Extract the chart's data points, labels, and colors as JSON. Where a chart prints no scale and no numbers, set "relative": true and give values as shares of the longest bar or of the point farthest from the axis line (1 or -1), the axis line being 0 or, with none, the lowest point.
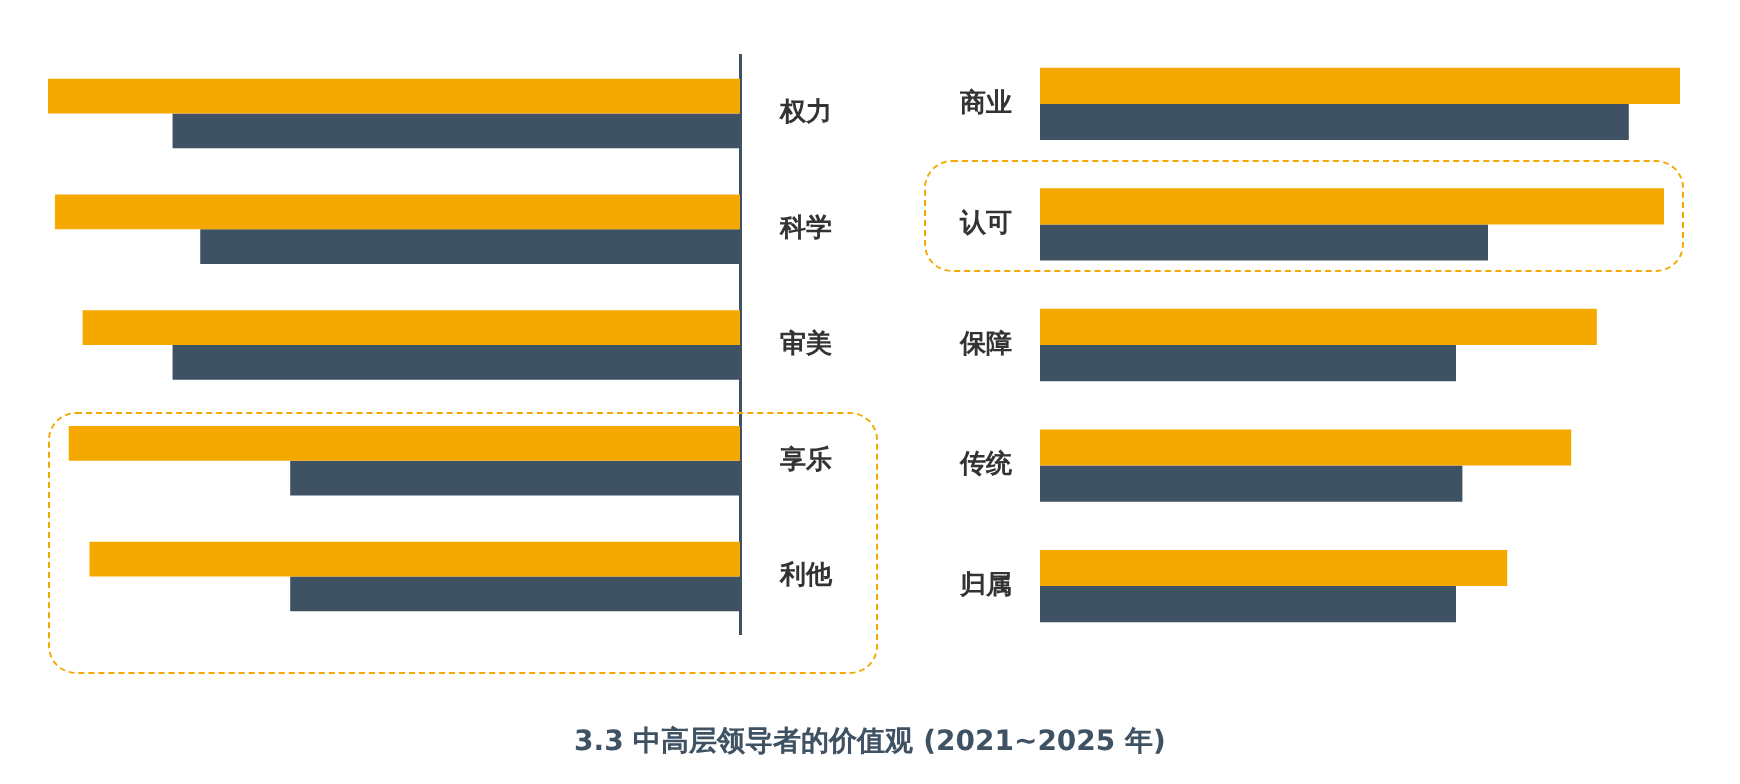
{
  "chart_data": [
    {
      "type": "bar",
      "orientation": "horizontal",
      "relative": true,
      "title": "3.3 中高层领导者的价值观 (2021~2025 年)",
      "categories": [
        "权力",
        "科学",
        "审美",
        "享乐",
        "利他"
      ],
      "legend": false,
      "grid": false,
      "series": [
        {
          "color": "#f5a800",
          "values": [
            1,
            0.99,
            0.95,
            0.97,
            0.94
          ]
        },
        {
          "color": "#3f5263",
          "values": [
            0.82,
            0.78,
            0.82,
            0.65,
            0.65
          ]
        }
      ]
    },
    {
      "type": "bar",
      "orientation": "horizontal",
      "relative": true,
      "categories": [
        "商业",
        "认可",
        "保障",
        "传统",
        "归属"
      ],
      "legend": false,
      "grid": false,
      "series": [
        {
          "color": "#f5a800",
          "values": [
            1,
            0.975,
            0.87,
            0.83,
            0.73
          ]
        },
        {
          "color": "#3f5263",
          "values": [
            0.92,
            0.7,
            0.65,
            0.66,
            0.65
          ]
        }
      ]
    }
  ]
}
